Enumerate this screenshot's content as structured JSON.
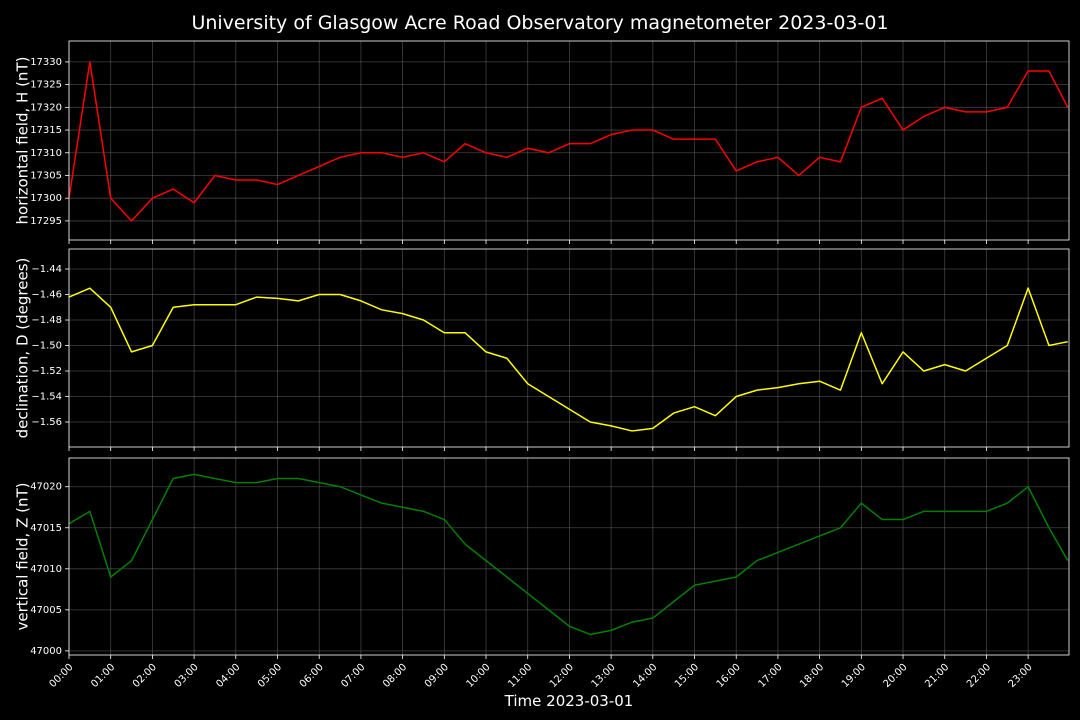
{
  "title": "University of Glasgow Acre Road Observatory magnetometer 2023-03-01",
  "x_label": "Time 2023-03-01",
  "chart_data": [
    {
      "type": "line",
      "y_label": "horizontal field, H (nT)",
      "color": "#ff0000",
      "grid": true,
      "x": [
        0,
        0.5,
        1,
        1.5,
        2,
        2.5,
        3,
        3.5,
        4,
        4.5,
        5,
        5.5,
        6,
        6.5,
        7,
        7.5,
        8,
        8.5,
        9,
        9.5,
        10,
        10.5,
        11,
        11.5,
        12,
        12.5,
        13,
        13.5,
        14,
        14.5,
        15,
        15.5,
        16,
        16.5,
        17,
        17.5,
        18,
        18.5,
        19,
        19.5,
        20,
        20.5,
        21,
        21.5,
        22,
        22.5,
        23,
        23.5,
        23.95
      ],
      "values": [
        17300,
        17330,
        17300,
        17295,
        17300,
        17302,
        17299,
        17305,
        17304,
        17304,
        17303,
        17305,
        17307,
        17309,
        17310,
        17310,
        17309,
        17310,
        17308,
        17312,
        17310,
        17309,
        17311,
        17310,
        17312,
        17312,
        17314,
        17315,
        17315,
        17313,
        17313,
        17313,
        17306,
        17308,
        17309,
        17305,
        17309,
        17308,
        17320,
        17322,
        17315,
        17318,
        17320,
        17319,
        17319,
        17320,
        17328,
        17328,
        17320
      ],
      "xlim": [
        0,
        23.98
      ],
      "xticks": [
        0,
        1,
        2,
        3,
        4,
        5,
        6,
        7,
        8,
        9,
        10,
        11,
        12,
        13,
        14,
        15,
        16,
        17,
        18,
        19,
        20,
        21,
        22,
        23
      ],
      "ylim": [
        17290.8,
        17334.6
      ],
      "yticks": [
        17295,
        17300,
        17305,
        17310,
        17315,
        17320,
        17325,
        17330
      ]
    },
    {
      "type": "line",
      "y_label": "declination, D (degrees)",
      "color": "#ffff00",
      "grid": true,
      "x": [
        0,
        0.5,
        1,
        1.5,
        2,
        2.5,
        3,
        3.5,
        4,
        4.5,
        5,
        5.5,
        6,
        6.5,
        7,
        7.5,
        8,
        8.5,
        9,
        9.5,
        10,
        10.5,
        11,
        11.5,
        12,
        12.5,
        13,
        13.5,
        14,
        14.5,
        15,
        15.5,
        16,
        16.5,
        17,
        17.5,
        18,
        18.5,
        19,
        19.5,
        20,
        20.5,
        21,
        21.5,
        22,
        22.5,
        23,
        23.5,
        23.95
      ],
      "values": [
        -1.462,
        -1.455,
        -1.47,
        -1.505,
        -1.5,
        -1.47,
        -1.468,
        -1.468,
        -1.468,
        -1.462,
        -1.463,
        -1.465,
        -1.46,
        -1.46,
        -1.465,
        -1.472,
        -1.475,
        -1.48,
        -1.49,
        -1.49,
        -1.505,
        -1.51,
        -1.53,
        -1.54,
        -1.55,
        -1.56,
        -1.563,
        -1.567,
        -1.565,
        -1.553,
        -1.548,
        -1.555,
        -1.54,
        -1.535,
        -1.533,
        -1.53,
        -1.528,
        -1.535,
        -1.49,
        -1.53,
        -1.505,
        -1.52,
        -1.515,
        -1.52,
        -1.51,
        -1.5,
        -1.455,
        -1.5,
        -1.497
      ],
      "xlim": [
        0,
        23.98
      ],
      "xticks": [
        0,
        1,
        2,
        3,
        4,
        5,
        6,
        7,
        8,
        9,
        10,
        11,
        12,
        13,
        14,
        15,
        16,
        17,
        18,
        19,
        20,
        21,
        22,
        23
      ],
      "ylim": [
        -1.5796,
        -1.4243
      ],
      "yticks": [
        {
          "value": -1.56,
          "label": "−1.56"
        },
        {
          "value": -1.54,
          "label": "−1.54"
        },
        {
          "value": -1.52,
          "label": "−1.52"
        },
        {
          "value": -1.5,
          "label": "−1.50"
        },
        {
          "value": -1.48,
          "label": "−1.48"
        },
        {
          "value": -1.46,
          "label": "−1.46"
        },
        {
          "value": -1.44,
          "label": "−1.44"
        }
      ]
    },
    {
      "type": "line",
      "y_label": "vertical field, Z (nT)",
      "color": "#008000",
      "grid": true,
      "x": [
        0,
        0.5,
        1,
        1.5,
        2,
        2.5,
        3,
        3.5,
        4,
        4.5,
        5,
        5.5,
        6,
        6.5,
        7,
        7.5,
        8,
        8.5,
        9,
        9.5,
        10,
        10.5,
        11,
        11.5,
        12,
        12.5,
        13,
        13.5,
        14,
        14.5,
        15,
        15.5,
        16,
        16.5,
        17,
        17.5,
        18,
        18.5,
        19,
        19.5,
        20,
        20.5,
        21,
        21.5,
        22,
        22.5,
        23,
        23.5,
        23.95
      ],
      "values": [
        47015.5,
        47017,
        47009,
        47011,
        47016,
        47021,
        47021.5,
        47021,
        47020.5,
        47020.5,
        47021,
        47021,
        47020.5,
        47020,
        47019,
        47018,
        47017.5,
        47017,
        47016,
        47013,
        47011,
        47009,
        47007,
        47005,
        47003,
        47002,
        47002.5,
        47003.5,
        47004,
        47006,
        47008,
        47008.5,
        47009,
        47011,
        47012,
        47013,
        47014,
        47015,
        47018,
        47016,
        47016,
        47017,
        47017,
        47017,
        47017,
        47018,
        47020,
        47015,
        47011
      ],
      "xlim": [
        0,
        23.98
      ],
      "xticks": [
        {
          "value": 0,
          "label": "00:00"
        },
        {
          "value": 1,
          "label": "01:00"
        },
        {
          "value": 2,
          "label": "02:00"
        },
        {
          "value": 3,
          "label": "03:00"
        },
        {
          "value": 4,
          "label": "04:00"
        },
        {
          "value": 5,
          "label": "05:00"
        },
        {
          "value": 6,
          "label": "06:00"
        },
        {
          "value": 7,
          "label": "07:00"
        },
        {
          "value": 8,
          "label": "08:00"
        },
        {
          "value": 9,
          "label": "09:00"
        },
        {
          "value": 10,
          "label": "10:00"
        },
        {
          "value": 11,
          "label": "11:00"
        },
        {
          "value": 12,
          "label": "12:00"
        },
        {
          "value": 13,
          "label": "13:00"
        },
        {
          "value": 14,
          "label": "14:00"
        },
        {
          "value": 15,
          "label": "15:00"
        },
        {
          "value": 16,
          "label": "16:00"
        },
        {
          "value": 17,
          "label": "17:00"
        },
        {
          "value": 18,
          "label": "18:00"
        },
        {
          "value": 19,
          "label": "19:00"
        },
        {
          "value": 20,
          "label": "20:00"
        },
        {
          "value": 21,
          "label": "21:00"
        },
        {
          "value": 22,
          "label": "22:00"
        },
        {
          "value": 23,
          "label": "23:00"
        }
      ],
      "ylim": [
        46999.5,
        47023.5
      ],
      "yticks": [
        47000,
        47005,
        47010,
        47015,
        47020
      ]
    }
  ]
}
